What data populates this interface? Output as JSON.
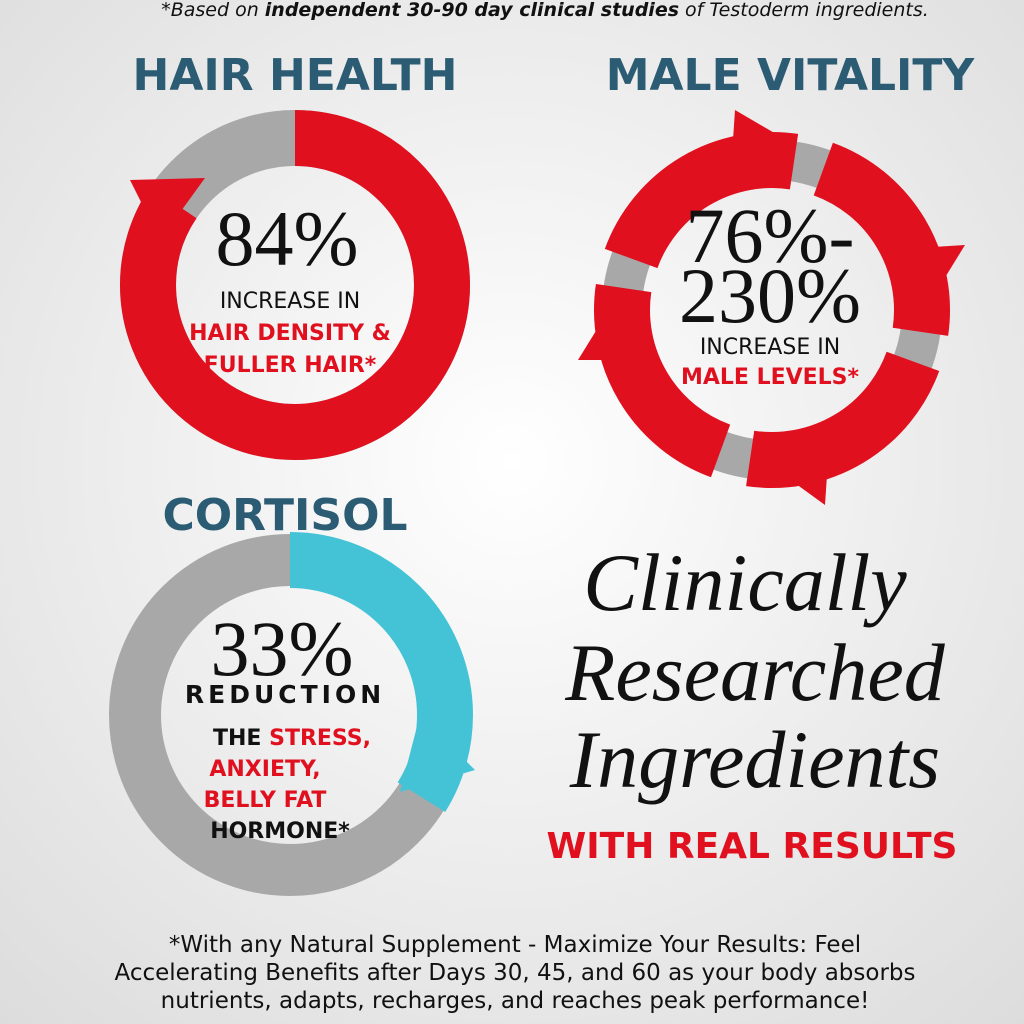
{
  "disclaimer": [
    "*Based on ",
    "independent 30-90 day clinical studies",
    " of Testoderm ingredients."
  ],
  "hair_health": {
    "title": "HAIR HEALTH",
    "stat": "84%",
    "line1": "INCREASE IN",
    "highlight": [
      "HAIR DENSITY &",
      "FULLER HAIR*"
    ]
  },
  "male_vitality": {
    "title": "MALE VITALITY",
    "stat": [
      "76%-",
      "230%"
    ],
    "line1": "INCREASE IN",
    "highlight": "MALE LEVELS*"
  },
  "cortisol": {
    "title": "CORTISOL",
    "stat": "33%",
    "line1": "REDUCTION",
    "lead": "THE ",
    "highlight": [
      "STRESS,",
      "ANXIETY,",
      "BELLY FAT"
    ],
    "last": "HORMONE*"
  },
  "headline": {
    "lines": [
      "Clinically",
      "Researched",
      "Ingredients"
    ],
    "tagline": "WITH REAL RESULTS"
  },
  "footer": [
    "*With any Natural Supplement - Maximize Your Results: Feel",
    "Accelerating Benefits after Days 30, 45, and 60 as your body absorbs",
    "nutrients, adapts, recharges, and reaches peak performance!"
  ]
}
